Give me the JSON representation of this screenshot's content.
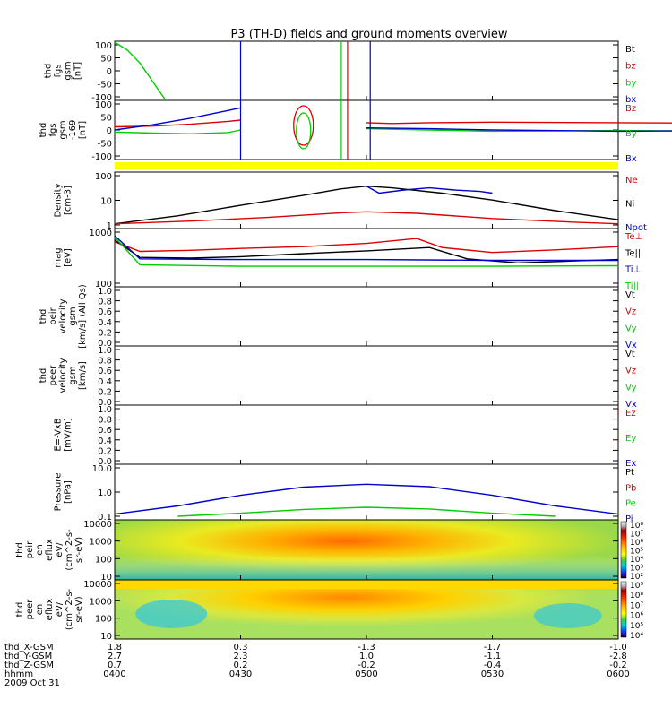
{
  "title": "P3 (TH-D) fields and ground moments overview",
  "colors": {
    "black": "#000000",
    "red": "#dd0000",
    "green": "#00cc00",
    "blue": "#0000cc",
    "yellow": "#ffff00"
  },
  "chart_data": {
    "type": "line",
    "panels": [
      {
        "id": "fgs",
        "ylabel_lines": [
          "thd",
          "fgs",
          "gsm",
          "[nT]"
        ],
        "yticks": [
          "100",
          "50",
          "0",
          "-50",
          "-100"
        ],
        "ylim": [
          -100,
          100
        ],
        "legend": [
          {
            "text": "Bt",
            "color": "#000000"
          },
          {
            "text": "bz",
            "color": "#dd0000"
          },
          {
            "text": "by",
            "color": "#00cc00"
          },
          {
            "text": "bx",
            "color": "#0000cc"
          }
        ]
      },
      {
        "id": "fgs2",
        "ylabel_lines": [
          "thd",
          "fgs",
          "gsm",
          "-169",
          "[nT]"
        ],
        "yticks": [
          "100",
          "50",
          "0",
          "-50",
          "-100"
        ],
        "ylim": [
          -100,
          100
        ],
        "legend": [
          {
            "text": "Bz",
            "color": "#dd0000"
          },
          {
            "text": "By",
            "color": "#00cc00"
          },
          {
            "text": "Bx",
            "color": "#0000cc"
          }
        ]
      },
      {
        "id": "density",
        "ylabel_lines": [
          "Density",
          "[cm-3]"
        ],
        "yticks": [
          "100",
          "10",
          "1"
        ],
        "ylim": [
          0.3,
          200
        ],
        "log": true,
        "legend": [
          {
            "text": "Ne",
            "color": "#dd0000"
          },
          {
            "text": "Ni",
            "color": "#000000"
          },
          {
            "text": "Npot",
            "color": "#0000cc"
          }
        ]
      },
      {
        "id": "temp",
        "ylabel_lines": [
          "mag",
          "[eV]"
        ],
        "yticks": [
          "1000",
          "100"
        ],
        "ylim": [
          100,
          1000
        ],
        "log": true,
        "legend": [
          {
            "text": "Te⊥",
            "color": "#dd0000"
          },
          {
            "text": "Te||",
            "color": "#000000"
          },
          {
            "text": "Ti⊥",
            "color": "#0000cc"
          },
          {
            "text": "Ti||",
            "color": "#00cc00"
          }
        ]
      },
      {
        "id": "peir",
        "ylabel_lines": [
          "thd",
          "peir",
          "velocity",
          "gsm",
          "[km/s] (All Qs)"
        ],
        "yticks": [
          "1.0",
          "0.8",
          "0.6",
          "0.4",
          "0.2",
          "0.0"
        ],
        "ylim": [
          0,
          1
        ],
        "legend": [
          {
            "text": "Vt",
            "color": "#000000"
          },
          {
            "text": "Vz",
            "color": "#dd0000"
          },
          {
            "text": "Vy",
            "color": "#00cc00"
          },
          {
            "text": "Vx",
            "color": "#0000cc"
          }
        ]
      },
      {
        "id": "peer",
        "ylabel_lines": [
          "thd",
          "peer",
          "velocity",
          "gsm",
          "[km/s]"
        ],
        "yticks": [
          "1.0",
          "0.8",
          "0.6",
          "0.4",
          "0.2",
          "0.0"
        ],
        "ylim": [
          0,
          1
        ],
        "legend": [
          {
            "text": "Vt",
            "color": "#000000"
          },
          {
            "text": "Vz",
            "color": "#dd0000"
          },
          {
            "text": "Vy",
            "color": "#00cc00"
          },
          {
            "text": "Vx",
            "color": "#0000cc"
          }
        ]
      },
      {
        "id": "efield",
        "ylabel_lines": [
          "E=-VxB",
          "[mV/m]"
        ],
        "yticks": [
          "1.0",
          "0.8",
          "0.6",
          "0.4",
          "0.2",
          "0.0"
        ],
        "ylim": [
          0,
          1
        ],
        "legend": [
          {
            "text": "Ez",
            "color": "#dd0000"
          },
          {
            "text": "Ey",
            "color": "#00cc00"
          },
          {
            "text": "Ex",
            "color": "#0000cc"
          }
        ]
      },
      {
        "id": "pressure",
        "ylabel_lines": [
          "Pressure",
          "[nPa]"
        ],
        "yticks": [
          "10.0",
          "1.0",
          "0.1"
        ],
        "ylim": [
          0.03,
          20
        ],
        "log": true,
        "legend": [
          {
            "text": "Pt",
            "color": "#000000"
          },
          {
            "text": "Pb",
            "color": "#dd0000"
          },
          {
            "text": "Pe",
            "color": "#00cc00"
          },
          {
            "text": "Pi",
            "color": "#0000cc"
          }
        ]
      },
      {
        "id": "peir_en",
        "ylabel_lines": [
          "thd",
          "peir",
          "en",
          "eflux",
          "eV/",
          "(cm^2-s-",
          "sr-eV)"
        ],
        "yticks": [
          "10000",
          "1000",
          "100",
          "10"
        ],
        "colorbar": [
          "10⁸",
          "10⁷",
          "10⁶",
          "10⁵",
          "10⁴",
          "10³",
          "10²"
        ]
      },
      {
        "id": "peer_en",
        "ylabel_lines": [
          "thd",
          "peer",
          "en",
          "eflux",
          "eV/",
          "(cm^2-s-",
          "sr-eV)"
        ],
        "yticks": [
          "10000",
          "1000",
          "100",
          "10"
        ],
        "colorbar": [
          "10⁹",
          "10⁸",
          "10⁷",
          "10⁶",
          "10⁵",
          "10⁴"
        ]
      }
    ],
    "series": [
      {
        "panel": "fgs",
        "name": "by",
        "color": "#00cc00",
        "x": [
          0,
          10,
          20,
          30,
          40
        ],
        "y": [
          110,
          80,
          30,
          -40,
          -110
        ]
      },
      {
        "panel": "fgs2",
        "name": "Bz",
        "color": "#dd0000",
        "x": [
          0,
          30,
          60,
          90,
          100
        ],
        "y": [
          12,
          15,
          22,
          33,
          38
        ]
      },
      {
        "panel": "fgs2",
        "name": "By",
        "color": "#00cc00",
        "x": [
          0,
          30,
          60,
          90,
          100
        ],
        "y": [
          -8,
          -12,
          -15,
          -10,
          0
        ]
      },
      {
        "panel": "fgs2",
        "name": "Bx",
        "color": "#0000cc",
        "x": [
          0,
          30,
          60,
          90,
          100
        ],
        "y": [
          0,
          20,
          45,
          75,
          85
        ]
      },
      {
        "panel": "fgs2",
        "name": "Bz",
        "color": "#dd0000",
        "x": [
          200,
          220,
          250,
          300,
          400,
          500,
          600
        ],
        "y": [
          28,
          25,
          28,
          30,
          28,
          26,
          25
        ]
      },
      {
        "panel": "fgs2",
        "name": "By",
        "color": "#00cc00",
        "x": [
          200,
          250,
          300,
          400,
          500,
          600
        ],
        "y": [
          5,
          0,
          -5,
          -2,
          -5,
          -10
        ]
      },
      {
        "panel": "fgs2",
        "name": "Bx",
        "color": "#0000cc",
        "x": [
          200,
          250,
          300,
          400,
          500,
          600
        ],
        "y": [
          8,
          5,
          0,
          -5,
          -2,
          0
        ]
      },
      {
        "panel": "density",
        "name": "Ni",
        "color": "#000000",
        "x": [
          0,
          50,
          100,
          150,
          180,
          200,
          220,
          260,
          300,
          350,
          400
        ],
        "y": [
          0.35,
          1,
          4,
          15,
          35,
          50,
          40,
          20,
          8,
          2,
          0.6
        ]
      },
      {
        "panel": "density",
        "name": "Ne",
        "color": "#dd0000",
        "x": [
          0,
          60,
          120,
          180,
          200,
          240,
          300,
          360,
          400
        ],
        "y": [
          0.35,
          0.5,
          0.8,
          1.5,
          1.7,
          1.4,
          0.7,
          0.45,
          0.35
        ]
      },
      {
        "panel": "density",
        "name": "Npot",
        "color": "#0000cc",
        "x": [
          200,
          210,
          230,
          250,
          270,
          290,
          300
        ],
        "y": [
          50,
          20,
          30,
          40,
          30,
          25,
          20
        ]
      },
      {
        "panel": "temp",
        "name": "Te⊥",
        "color": "#dd0000",
        "x": [
          0,
          20,
          60,
          100,
          150,
          200,
          240,
          260,
          300,
          350,
          400
        ],
        "y": [
          650,
          420,
          440,
          480,
          520,
          600,
          750,
          500,
          400,
          450,
          520
        ]
      },
      {
        "panel": "temp",
        "name": "Te||",
        "color": "#000000",
        "x": [
          0,
          20,
          60,
          100,
          150,
          200,
          250,
          280,
          320,
          360,
          400
        ],
        "y": [
          700,
          320,
          310,
          330,
          380,
          430,
          500,
          300,
          250,
          270,
          290
        ]
      },
      {
        "panel": "temp",
        "name": "Ti⊥",
        "color": "#0000cc",
        "x": [
          0,
          20,
          100,
          200,
          300,
          400
        ],
        "y": [
          850,
          300,
          290,
          290,
          280,
          280
        ]
      },
      {
        "panel": "temp",
        "name": "Ti||",
        "color": "#00cc00",
        "x": [
          0,
          20,
          100,
          200,
          300,
          400
        ],
        "y": [
          800,
          230,
          215,
          215,
          215,
          220
        ]
      },
      {
        "panel": "pressure",
        "name": "Pi",
        "color": "#0000cc",
        "x": [
          0,
          50,
          100,
          150,
          200,
          250,
          300,
          350,
          400
        ],
        "y": [
          0.04,
          0.12,
          0.5,
          1.5,
          2.2,
          1.6,
          0.5,
          0.12,
          0.04
        ]
      },
      {
        "panel": "pressure",
        "name": "Pe",
        "color": "#00cc00",
        "x": [
          50,
          100,
          150,
          200,
          250,
          300,
          350
        ],
        "y": [
          0.03,
          0.045,
          0.075,
          0.1,
          0.08,
          0.045,
          0.03
        ]
      }
    ],
    "xaxis": {
      "rows": [
        {
          "label": "thd_X-GSM",
          "values": [
            "1.8",
            "0.3",
            "-1.3",
            "-1.7",
            "-1.0"
          ]
        },
        {
          "label": "thd_Y-GSM",
          "values": [
            "2.7",
            "2.3",
            "1.0",
            "-1.1",
            "-2.8"
          ]
        },
        {
          "label": "thd_Z-GSM",
          "values": [
            "0.7",
            "0.2",
            "-0.2",
            "-0.4",
            "-0.2"
          ]
        },
        {
          "label": "hhmm",
          "values": [
            "0400",
            "0430",
            "0500",
            "0530",
            "0600"
          ]
        }
      ],
      "date": "2009 Oct 31"
    }
  }
}
